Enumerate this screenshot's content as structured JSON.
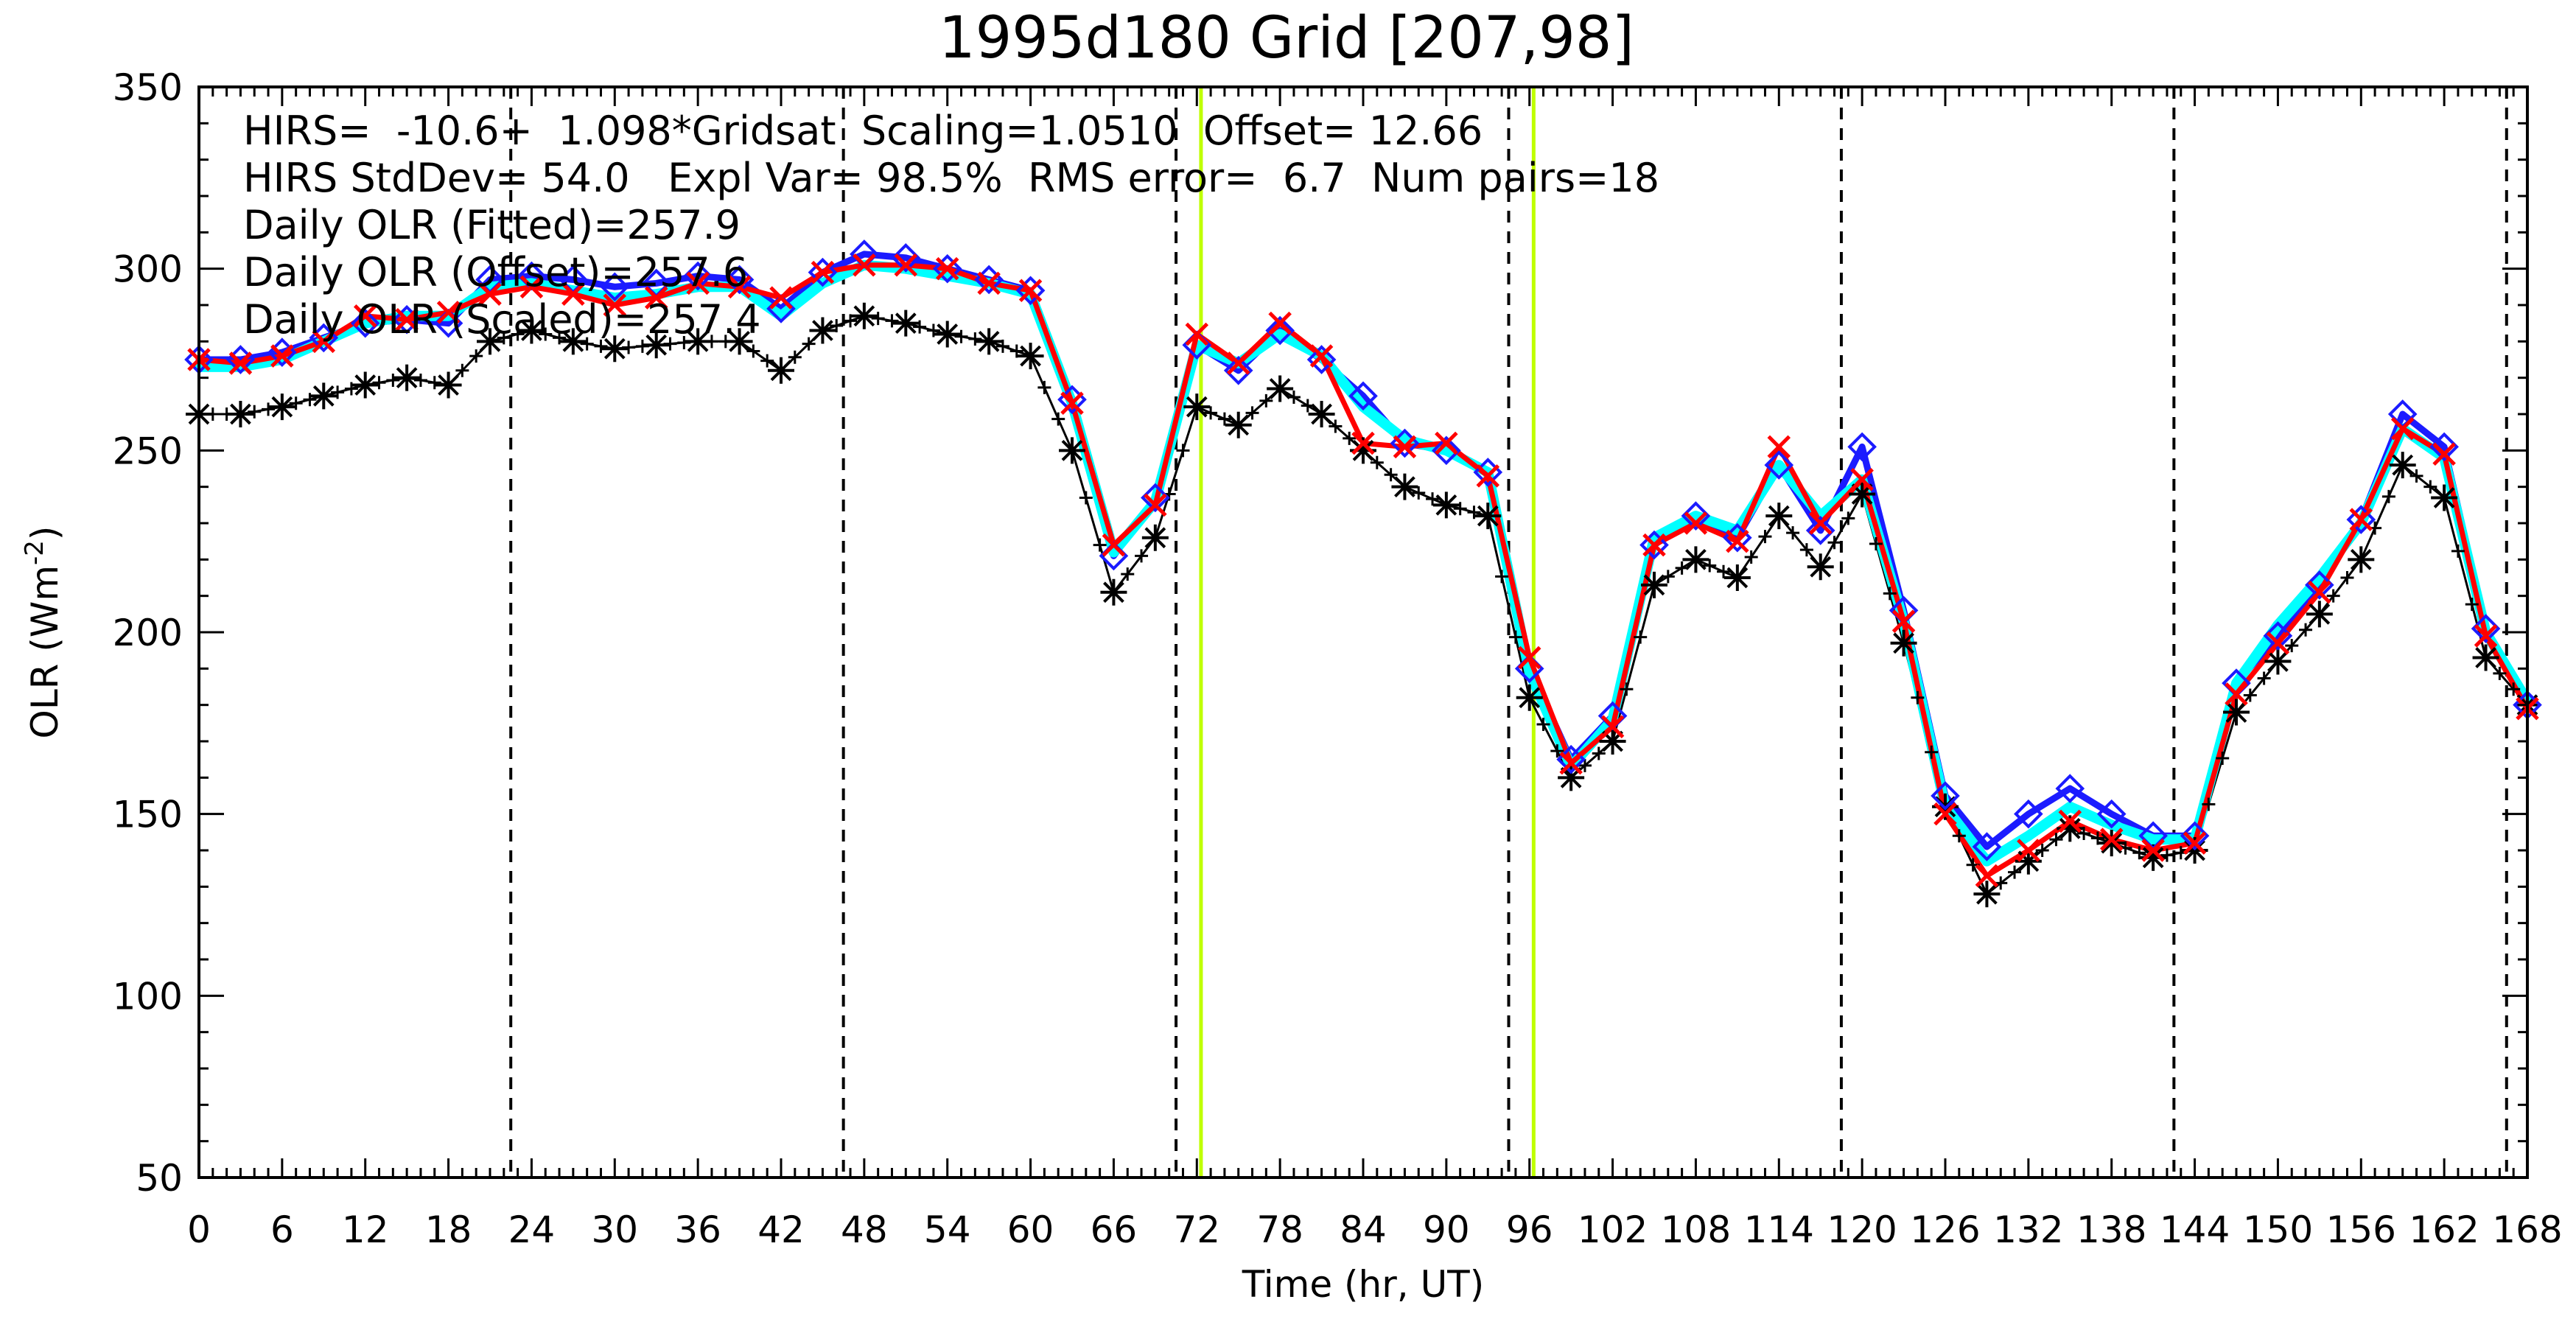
{
  "chart_data": {
    "type": "line",
    "title": "1995d180 Grid [207,98]",
    "xlabel": "Time (hr, UT)",
    "ylabel": "OLR (Wm",
    "ylabel_sup": "-2",
    "ylabel_close": ")",
    "xlim": [
      0,
      168
    ],
    "ylim": [
      50,
      350
    ],
    "xticks": [
      0,
      6,
      12,
      18,
      24,
      30,
      36,
      42,
      48,
      54,
      60,
      66,
      72,
      78,
      84,
      90,
      96,
      102,
      108,
      114,
      120,
      126,
      132,
      138,
      144,
      150,
      156,
      162,
      168
    ],
    "xtick_labels": [
      "0",
      "6",
      "12",
      "18",
      "24",
      "30",
      "36",
      "42",
      "48",
      "54",
      "60",
      "66",
      "72",
      "78",
      "84",
      "90",
      "96",
      "102",
      "108",
      "114",
      "120",
      "126",
      "132",
      "138",
      "144",
      "150",
      "156",
      "162",
      "168"
    ],
    "yticks": [
      50,
      100,
      150,
      200,
      250,
      300,
      350
    ],
    "ytick_labels": [
      "50",
      "100",
      "150",
      "200",
      "250",
      "300",
      "350"
    ],
    "annotations": [
      "HIRS=  -10.6+  1.098*Gridsat  Scaling=1.0510  Offset= 12.66",
      "HIRS StdDev= 54.0   Expl Var= 98.5%  RMS error=  6.7  Num pairs=18",
      "Daily OLR (Fitted)=257.9",
      "Daily OLR (Offset)=257.6",
      "Daily OLR (Scaled)=257.4"
    ],
    "vlines_dashed": [
      22.5,
      46.5,
      70.5,
      94.5,
      118.5,
      142.5,
      166.5
    ],
    "vlines_solid": [
      72.3,
      96.3
    ],
    "vline_solid_color": "#bfff00",
    "x": [
      0,
      3,
      6,
      9,
      12,
      15,
      18,
      21,
      24,
      27,
      30,
      33,
      36,
      39,
      42,
      45,
      48,
      51,
      54,
      57,
      60,
      63,
      66,
      69,
      72,
      75,
      78,
      81,
      84,
      87,
      90,
      93,
      96,
      99,
      102,
      105,
      108,
      111,
      114,
      117,
      120,
      123,
      126,
      129,
      132,
      135,
      138,
      141,
      144,
      147,
      150,
      153,
      156,
      159,
      162,
      165,
      168
    ],
    "series": [
      {
        "name": "Gridsat",
        "color": "#000000",
        "marker": "asterisk",
        "values": [
          260,
          260,
          262,
          265,
          268,
          270,
          268,
          280,
          283,
          280,
          278,
          279,
          280,
          280,
          272,
          283,
          287,
          285,
          282,
          280,
          276,
          250,
          211,
          226,
          262,
          257,
          267,
          260,
          250,
          240,
          235,
          232,
          182,
          160,
          170,
          213,
          220,
          215,
          232,
          218,
          238,
          197,
          152,
          128,
          137,
          146,
          142,
          138,
          140,
          178,
          192,
          205,
          220,
          246,
          237,
          193,
          180
        ]
      },
      {
        "name": "Fitted",
        "color": "#00ffff",
        "marker": "none",
        "values": [
          273,
          273,
          275,
          280,
          285,
          287,
          287,
          295,
          296,
          294,
          292,
          293,
          295,
          295,
          287,
          296,
          301,
          300,
          298,
          296,
          293,
          263,
          222,
          236,
          279,
          274,
          282,
          276,
          262,
          253,
          250,
          244,
          189,
          163,
          176,
          226,
          232,
          228,
          246,
          232,
          242,
          203,
          152,
          137,
          144,
          152,
          147,
          143,
          143,
          186,
          202,
          215,
          230,
          256,
          248,
          200,
          181
        ]
      },
      {
        "name": "Offset",
        "color": "#1b1bff",
        "marker": "diamond",
        "values": [
          275,
          275,
          277,
          281,
          285,
          286,
          285,
          297,
          298,
          297,
          295,
          296,
          298,
          297,
          289,
          299,
          304,
          303,
          300,
          297,
          294,
          264,
          221,
          237,
          279,
          272,
          283,
          275,
          265,
          252,
          250,
          244,
          190,
          165,
          177,
          224,
          232,
          226,
          246,
          228,
          251,
          206,
          155,
          141,
          150,
          157,
          150,
          144,
          144,
          186,
          199,
          213,
          231,
          260,
          251,
          201,
          180
        ]
      },
      {
        "name": "Scaled",
        "color": "#ff0000",
        "marker": "x",
        "values": [
          275,
          274,
          276,
          280,
          287,
          286,
          288,
          293,
          295,
          293,
          290,
          292,
          296,
          295,
          292,
          299,
          301,
          301,
          300,
          296,
          294,
          263,
          224,
          235,
          282,
          274,
          285,
          276,
          252,
          251,
          252,
          243,
          193,
          164,
          174,
          224,
          230,
          225,
          251,
          230,
          242,
          203,
          150,
          133,
          140,
          148,
          143,
          140,
          142,
          183,
          197,
          211,
          231,
          256,
          249,
          199,
          179
        ]
      }
    ]
  }
}
